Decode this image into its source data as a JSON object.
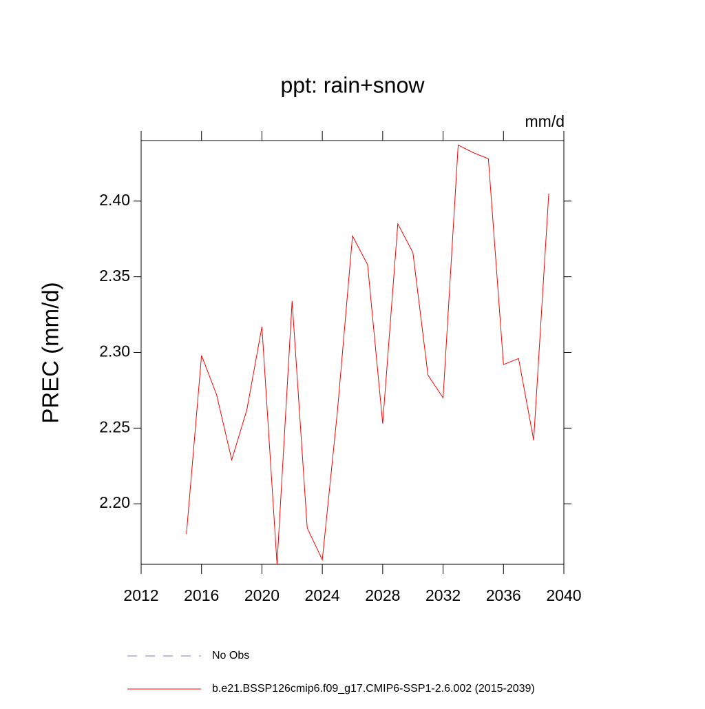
{
  "chart_data": {
    "type": "line",
    "title": "ppt: rain+snow",
    "units_label": "mm/d",
    "y_label": "PREC  (mm/d)",
    "x": [
      2015,
      2016,
      2017,
      2018,
      2019,
      2020,
      2021,
      2022,
      2023,
      2024,
      2025,
      2026,
      2027,
      2028,
      2029,
      2030,
      2031,
      2032,
      2033,
      2034,
      2035,
      2036,
      2037,
      2038,
      2039
    ],
    "series": [
      {
        "name": "b.e21.BSSP126cmip6.f09_g17.CMIP6-SSP1-2.6.002 (2015-2039)",
        "color": "#ff0000",
        "values": [
          2.18,
          2.298,
          2.272,
          2.229,
          2.262,
          2.317,
          2.16,
          2.334,
          2.184,
          2.163,
          2.261,
          2.377,
          2.358,
          2.253,
          2.385,
          2.366,
          2.285,
          2.27,
          2.437,
          2.432,
          2.428,
          2.292,
          2.296,
          2.242,
          2.405
        ]
      }
    ],
    "legend_extra": [
      {
        "text": "No Obs",
        "color": "#7a7ac8",
        "style": "dashed"
      }
    ],
    "xlim": [
      2012,
      2040
    ],
    "xticks": [
      2012,
      2016,
      2020,
      2024,
      2028,
      2032,
      2036,
      2040
    ],
    "ylim": [
      2.16,
      2.44
    ],
    "yticks": [
      {
        "value": 2.2,
        "label": "2.20"
      },
      2.25,
      {
        "value": 2.3,
        "label": "2.30"
      },
      2.35,
      {
        "value": 2.4,
        "label": "2.40"
      }
    ]
  }
}
